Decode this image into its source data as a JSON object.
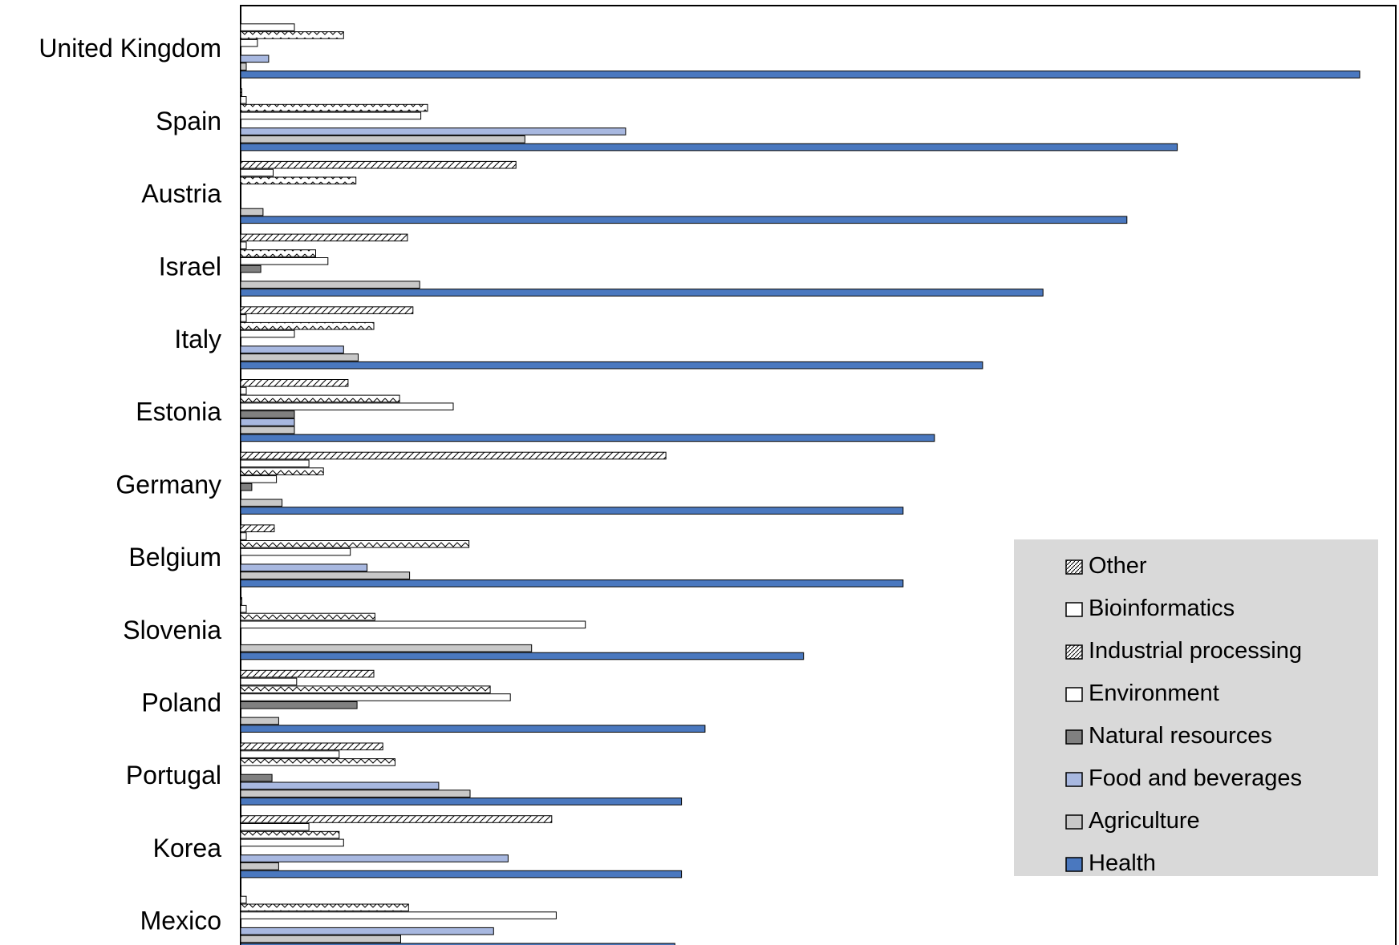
{
  "chart_data": {
    "type": "bar",
    "orientation": "horizontal",
    "stacked": false,
    "title": "",
    "xlabel": "",
    "ylabel": "",
    "xlim": [
      0,
      100
    ],
    "grid": false,
    "legend_position": "bottom-right",
    "categories": [
      "United Kingdom",
      "Spain",
      "Austria",
      "Israel",
      "Italy",
      "Estonia",
      "Germany",
      "Belgium",
      "Slovenia",
      "Poland",
      "Portugal",
      "Korea",
      "Mexico"
    ],
    "series": [
      {
        "name": "Other",
        "color": "#ffffff",
        "pattern": "diagonal-hatch",
        "values": [
          0,
          0.1,
          24.6,
          14.9,
          15.4,
          9.6,
          38.0,
          3.0,
          0.1,
          11.9,
          12.7,
          27.8,
          0
        ]
      },
      {
        "name": "Bioinformatics",
        "color": "#ffffff",
        "pattern": "none",
        "values": [
          4.8,
          0.5,
          2.9,
          0.5,
          0.5,
          0.5,
          6.1,
          0.5,
          0.5,
          5.0,
          8.8,
          6.1,
          0.5
        ]
      },
      {
        "name": "Industrial processing",
        "color": "#ffffff",
        "pattern": "zigzag",
        "values": [
          9.2,
          16.7,
          10.3,
          6.7,
          11.9,
          14.2,
          7.4,
          20.4,
          12.0,
          22.3,
          13.8,
          8.8,
          15.0
        ]
      },
      {
        "name": "Environment",
        "color": "#ffffff",
        "pattern": "none",
        "values": [
          1.5,
          16.1,
          0,
          7.8,
          4.8,
          19.0,
          3.2,
          9.8,
          30.8,
          24.1,
          0,
          9.2,
          28.2
        ]
      },
      {
        "name": "Natural resources",
        "color": "#808080",
        "pattern": "none",
        "values": [
          0,
          0,
          0,
          1.8,
          0,
          4.8,
          1.0,
          0,
          0,
          10.4,
          2.8,
          0,
          0
        ]
      },
      {
        "name": "Food and beverages",
        "color": "#a8b8e0",
        "pattern": "none",
        "values": [
          2.5,
          34.4,
          0,
          0,
          9.2,
          4.8,
          0,
          11.3,
          0,
          0,
          17.7,
          23.9,
          22.6
        ]
      },
      {
        "name": "Agriculture",
        "color": "#c8c8c8",
        "pattern": "none",
        "values": [
          0.5,
          25.4,
          2.0,
          16.0,
          10.5,
          4.8,
          3.7,
          15.1,
          26.0,
          3.4,
          20.5,
          3.4,
          14.3
        ]
      },
      {
        "name": "Health",
        "color": "#4a78bf",
        "pattern": "none",
        "values": [
          100.0,
          83.7,
          79.2,
          71.7,
          66.3,
          62.0,
          59.2,
          59.2,
          50.3,
          41.5,
          39.4,
          39.4,
          38.8
        ]
      }
    ]
  }
}
